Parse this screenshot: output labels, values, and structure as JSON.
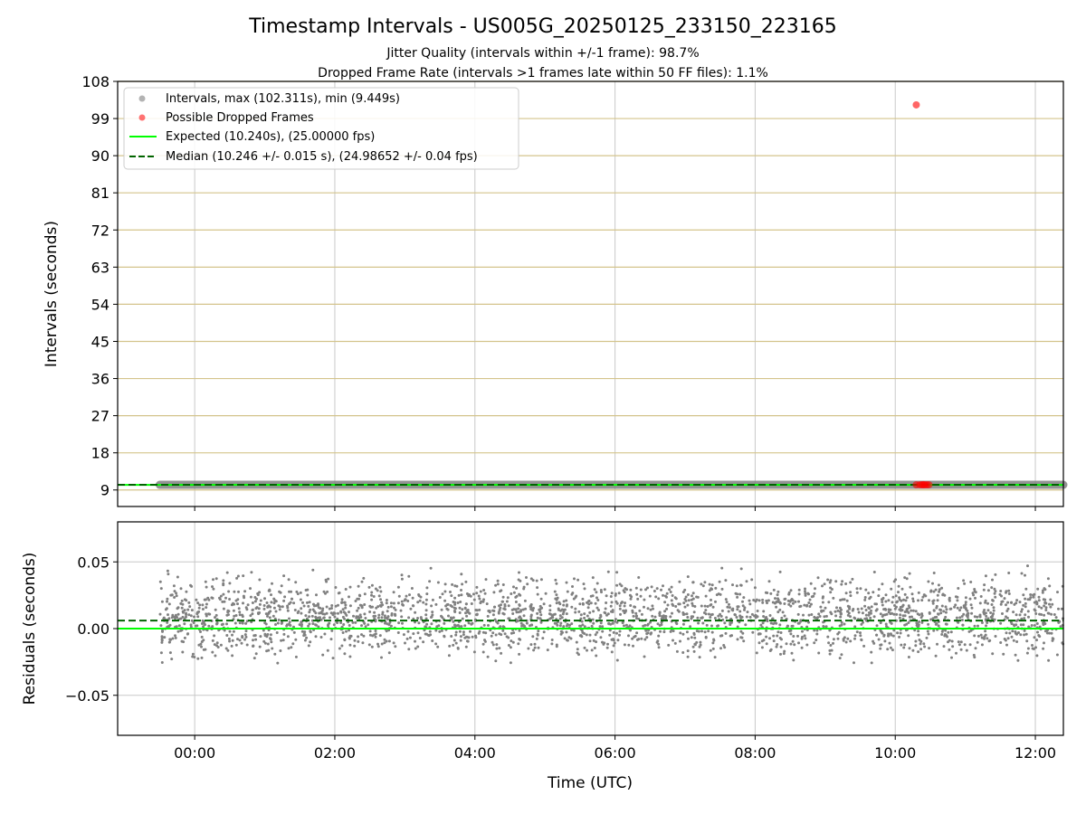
{
  "figure": {
    "title": "Timestamp Intervals - US005G_20250125_233150_223165",
    "subtitle_line1": "Jitter Quality (intervals within +/-1 frame): 98.7%",
    "subtitle_line2": "Dropped Frame Rate (intervals >1 frames late within 50 FF files): 1.1%"
  },
  "chart_data": [
    {
      "type": "scatter",
      "panel": "top",
      "ylabel": "Intervals (seconds)",
      "xlabel": "",
      "ylim": [
        5,
        108
      ],
      "yticks": [
        9,
        18,
        27,
        36,
        45,
        54,
        63,
        72,
        81,
        90,
        99,
        108
      ],
      "xlim_hours": [
        -1.1,
        12.4
      ],
      "grid": true,
      "legend_position": "top-left",
      "legend": [
        "Intervals, max (102.311s), min (9.449s)",
        "Possible Dropped Frames",
        "Expected (10.240s), (25.00000 fps)",
        "Median (10.246 +/- 0.015 s), (24.98652 +/- 0.04 fps)"
      ],
      "series": [
        {
          "name": "Intervals, max (102.311s), min (9.449s)",
          "x_range_hours": [
            -0.5,
            12.4
          ],
          "y_typical": 10.246,
          "color": "#808080"
        },
        {
          "name": "Possible Dropped Frames",
          "x_hours": [
            10.3,
            10.35,
            10.38,
            10.4,
            10.42,
            10.45,
            10.48,
            10.3
          ],
          "y": [
            10.26,
            10.27,
            10.26,
            10.28,
            10.26,
            10.27,
            10.26,
            102.311
          ],
          "color": "#ff0000"
        },
        {
          "name": "Expected (10.240s), (25.00000 fps)",
          "y": 10.24,
          "color": "#00ff00"
        },
        {
          "name": "Median (10.246 +/- 0.015 s), (24.98652 +/- 0.04 fps)",
          "y": 10.246,
          "color": "#006400"
        }
      ]
    },
    {
      "type": "scatter",
      "panel": "bottom",
      "ylabel": "Residuals (seconds)",
      "xlabel": "Time (UTC)",
      "ylim": [
        -0.08,
        0.08
      ],
      "yticks": [
        -0.05,
        0.0,
        0.05
      ],
      "ytick_labels": [
        "−0.05",
        "0.00",
        "0.05"
      ],
      "xticks_hours": [
        0,
        2,
        4,
        6,
        8,
        10,
        12
      ],
      "xtick_labels": [
        "00:00",
        "02:00",
        "04:00",
        "06:00",
        "08:00",
        "10:00",
        "12:00"
      ],
      "xlim_hours": [
        -1.1,
        12.4
      ],
      "grid": true,
      "series": [
        {
          "name": "Residuals",
          "x_range_hours": [
            -0.5,
            12.4
          ],
          "y_range": [
            -0.051,
            0.051
          ],
          "color": "#808080"
        },
        {
          "name": "Expected",
          "y": 0.0,
          "color": "#00ff00"
        },
        {
          "name": "Median",
          "y": 0.006,
          "color": "#006400"
        }
      ]
    }
  ]
}
